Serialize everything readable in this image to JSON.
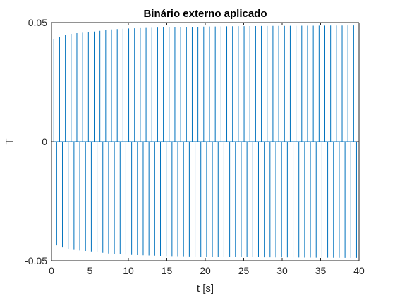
{
  "chart_data": {
    "type": "line",
    "title": "Binário externo aplicado",
    "xlabel": "t [s]",
    "ylabel": "T",
    "xlim": [
      0,
      40
    ],
    "ylim": [
      -0.05,
      0.05
    ],
    "xticks": [
      0,
      5,
      10,
      15,
      20,
      25,
      30,
      35,
      40
    ],
    "xtick_labels": [
      "0",
      "5",
      "10",
      "15",
      "20",
      "25",
      "30",
      "35",
      "40"
    ],
    "yticks": [
      -0.05,
      0,
      0.05
    ],
    "ytick_labels": [
      "-0.05",
      "0",
      "0.05"
    ],
    "grid": false,
    "legend": "none",
    "series": [
      {
        "color": "#0072BD",
        "pulse_period": 0.75,
        "x_start": 0.3,
        "amplitude": [
          [
            0.3,
            0.043
          ],
          [
            1,
            0.044
          ],
          [
            2,
            0.045
          ],
          [
            3,
            0.0455
          ],
          [
            5,
            0.046
          ],
          [
            8,
            0.0472
          ],
          [
            10,
            0.0475
          ],
          [
            15,
            0.048
          ],
          [
            20,
            0.0483
          ],
          [
            25,
            0.0485
          ],
          [
            30,
            0.0486
          ],
          [
            35,
            0.0487
          ],
          [
            40,
            0.0488
          ]
        ]
      }
    ]
  }
}
